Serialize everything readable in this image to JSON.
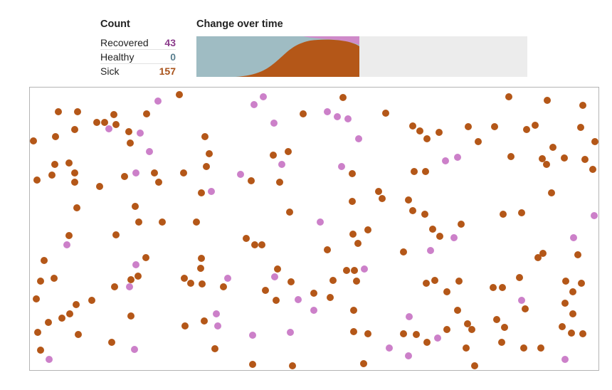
{
  "count": {
    "title": "Count",
    "rows": [
      {
        "label": "Recovered",
        "value": "43",
        "color": "#8b3a8b"
      },
      {
        "label": "Healthy",
        "value": "0",
        "color": "#5a7f8f"
      },
      {
        "label": "Sick",
        "value": "157",
        "color": "#a8521a"
      }
    ]
  },
  "change": {
    "title": "Change over time",
    "progress": 0.5,
    "colors": {
      "healthy": "#9fbcc3",
      "sick": "#b45718",
      "recovered": "#cf8ac9",
      "empty": "#ececec"
    }
  },
  "colors": {
    "sick_dot": "#b45718",
    "recovered_dot": "#cc80c9"
  }
}
